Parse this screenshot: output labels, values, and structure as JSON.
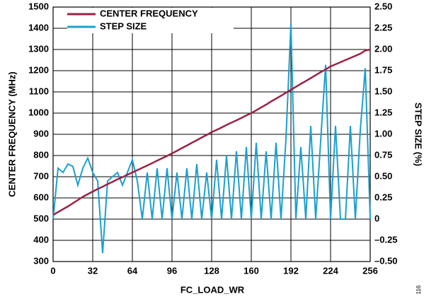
{
  "chart_data": {
    "type": "line",
    "xlabel": "FC_LOAD_WR",
    "ylabel": "CENTER FREQUENCY (MHz)",
    "y2label": "STEP SIZE (%)",
    "figure_id": "116",
    "legend": "upper left",
    "grid": true,
    "xlim": [
      0,
      256
    ],
    "xticks": [
      0,
      32,
      64,
      96,
      128,
      160,
      192,
      224,
      256
    ],
    "ylim": [
      300,
      1500
    ],
    "yticks": [
      300,
      400,
      500,
      600,
      700,
      800,
      900,
      1000,
      1100,
      1200,
      1300,
      1400,
      1500
    ],
    "y2lim": [
      -0.5,
      2.5
    ],
    "y2ticks": [
      {
        "value": -0.5,
        "label": "–0.50"
      },
      {
        "value": -0.25,
        "label": "–0.25"
      },
      0,
      0.25,
      {
        "value": 0.5,
        "label": "0.50"
      },
      0.75,
      {
        "value": 1,
        "label": "1.00"
      },
      1.25,
      {
        "value": 1.5,
        "label": "1.50"
      },
      1.75,
      {
        "value": 2,
        "label": "2.00"
      },
      2.25,
      {
        "value": 2.5,
        "label": "2.50"
      }
    ],
    "x": [
      0,
      4,
      8,
      12,
      16,
      20,
      24,
      28,
      32,
      36,
      40,
      44,
      48,
      52,
      56,
      60,
      64,
      68,
      72,
      76,
      80,
      84,
      88,
      92,
      96,
      100,
      104,
      108,
      112,
      116,
      120,
      124,
      128,
      132,
      136,
      140,
      144,
      148,
      152,
      156,
      160,
      164,
      168,
      172,
      176,
      180,
      184,
      188,
      192,
      196,
      200,
      204,
      208,
      212,
      216,
      220,
      224,
      228,
      232,
      236,
      240,
      244,
      248,
      252,
      256
    ],
    "series": [
      {
        "name": "CENTER FREQUENCY",
        "color": "#9b2245",
        "values": [
          520,
          533,
          547,
          560,
          575,
          590,
          605,
          618,
          630,
          642,
          653,
          665,
          676,
          688,
          698,
          709,
          720,
          731,
          742,
          753,
          764,
          776,
          787,
          798,
          810,
          822,
          835,
          847,
          860,
          872,
          885,
          897,
          910,
          921,
          932,
          944,
          955,
          966,
          977,
          989,
          1000,
          1013,
          1027,
          1040,
          1055,
          1068,
          1082,
          1096,
          1110,
          1124,
          1138,
          1151,
          1165,
          1179,
          1193,
          1206,
          1220,
          1230,
          1240,
          1250,
          1260,
          1270,
          1280,
          1295,
          1300
        ]
      },
      {
        "name": "STEP SIZE",
        "color": "#1aa0d0",
        "axis": "y2",
        "values": [
          0,
          0.6,
          0.55,
          0.65,
          0.62,
          0.4,
          0.6,
          0.72,
          0.55,
          0.45,
          -0.4,
          0.45,
          0.5,
          0.55,
          0.4,
          0.55,
          0.7,
          0.45,
          0,
          0.55,
          0,
          0.6,
          0,
          0.6,
          0,
          0.55,
          0,
          0.6,
          0,
          0.65,
          0,
          0.55,
          0,
          0.7,
          0,
          0.75,
          0,
          0.8,
          0,
          0.85,
          0,
          0.9,
          0,
          0.8,
          0,
          0.9,
          0,
          0.95,
          2.3,
          0,
          0.85,
          0,
          1.1,
          0,
          0.92,
          1.82,
          0,
          1.1,
          0,
          0,
          1.1,
          0,
          1.05,
          1.78,
          0
        ]
      }
    ]
  }
}
